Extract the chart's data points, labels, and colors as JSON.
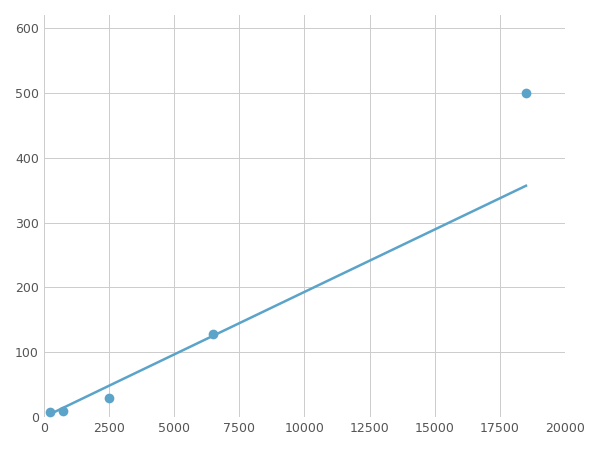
{
  "x": [
    250,
    750,
    2500,
    6500,
    18500
  ],
  "y": [
    8,
    10,
    30,
    128,
    500
  ],
  "line_color": "#5ba3c9",
  "marker_color": "#5ba3c9",
  "marker_size": 7,
  "line_width": 1.8,
  "xlim": [
    0,
    20000
  ],
  "ylim": [
    0,
    620
  ],
  "xticks": [
    0,
    2500,
    5000,
    7500,
    10000,
    12500,
    15000,
    17500,
    20000
  ],
  "yticks": [
    0,
    100,
    200,
    300,
    400,
    500,
    600
  ],
  "grid_color": "#cccccc",
  "background_color": "#ffffff",
  "figsize": [
    6.0,
    4.5
  ],
  "dpi": 100
}
